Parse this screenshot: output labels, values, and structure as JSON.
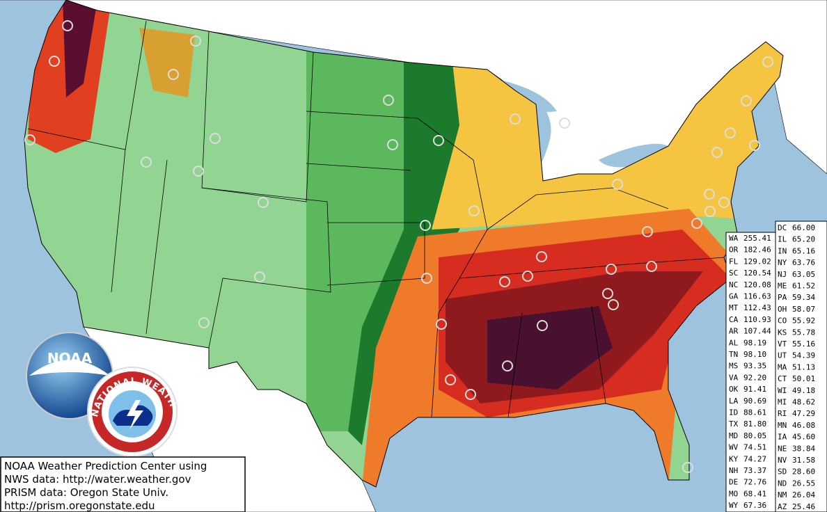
{
  "credit": {
    "lines": [
      "NOAA Weather Prediction Center using",
      "NWS data: http://water.weather.gov",
      "PRISM data: Oregon State Univ.",
      "http://prism.oregonstate.edu"
    ]
  },
  "logos": {
    "noaa": "NOAA",
    "nws": "NATIONAL WEATHER SERVICE"
  },
  "table": {
    "left": [
      [
        "WA",
        "255.41"
      ],
      [
        "OR",
        "182.46"
      ],
      [
        "FL",
        "129.02"
      ],
      [
        "SC",
        "120.54"
      ],
      [
        "NC",
        "120.08"
      ],
      [
        "GA",
        "116.63"
      ],
      [
        "MT",
        "112.43"
      ],
      [
        "CA",
        "110.93"
      ],
      [
        "AR",
        "107.44"
      ],
      [
        "AL",
        "98.19"
      ],
      [
        "TN",
        "98.10"
      ],
      [
        "MS",
        "93.35"
      ],
      [
        "VA",
        "92.20"
      ],
      [
        "OK",
        "91.41"
      ],
      [
        "LA",
        "90.69"
      ],
      [
        "ID",
        "88.61"
      ],
      [
        "TX",
        "81.80"
      ],
      [
        "MD",
        "80.05"
      ],
      [
        "WV",
        "74.51"
      ],
      [
        "KY",
        "74.27"
      ],
      [
        "NH",
        "73.37"
      ],
      [
        "DE",
        "72.76"
      ],
      [
        "MO",
        "68.41"
      ],
      [
        "WY",
        "67.36"
      ]
    ],
    "right": [
      [
        "DC",
        "66.00"
      ],
      [
        "IL",
        "65.20"
      ],
      [
        "IN",
        "65.16"
      ],
      [
        "NY",
        "63.76"
      ],
      [
        "NJ",
        "63.05"
      ],
      [
        "ME",
        "61.52"
      ],
      [
        "PA",
        "59.34"
      ],
      [
        "OH",
        "58.07"
      ],
      [
        "CO",
        "55.92"
      ],
      [
        "KS",
        "55.78"
      ],
      [
        "VT",
        "55.16"
      ],
      [
        "UT",
        "54.39"
      ],
      [
        "MA",
        "51.13"
      ],
      [
        "CT",
        "50.01"
      ],
      [
        "WI",
        "49.18"
      ],
      [
        "MI",
        "48.62"
      ],
      [
        "RI",
        "47.29"
      ],
      [
        "MN",
        "46.08"
      ],
      [
        "IA",
        "45.60"
      ],
      [
        "NE",
        "38.84"
      ],
      [
        "NV",
        "31.58"
      ],
      [
        "SD",
        "28.60"
      ],
      [
        "ND",
        "26.55"
      ],
      [
        "NM",
        "26.04"
      ],
      [
        "AZ",
        "25.46"
      ]
    ]
  }
}
